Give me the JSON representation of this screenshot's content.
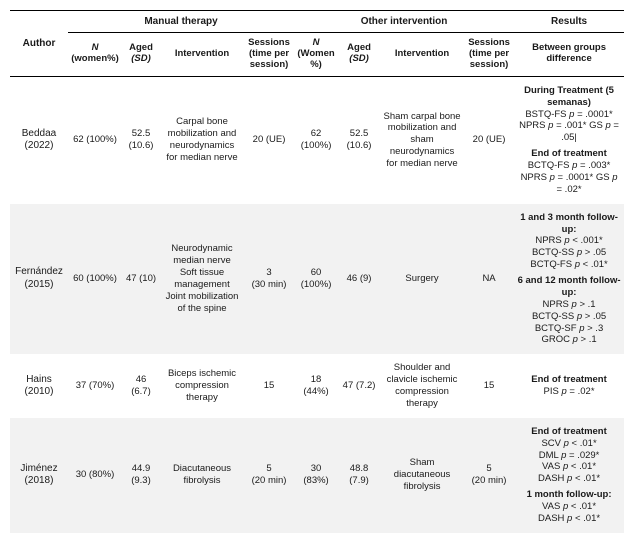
{
  "headers": {
    "group_author": "Author",
    "group_manual": "Manual therapy",
    "group_other": "Other intervention",
    "group_results": "Results",
    "n_women_html": "<span class='ital'>N</span><br>(women%)",
    "aged_html": "Aged<br><span class='ital'>(SD)</span>",
    "intervention": "Intervention",
    "sessions_html": "Sessions<br>(time per<br>session)",
    "n_women2_html": "<span class='ital'>N</span><br>(Women<br>%)",
    "results_sub": "Between groups<br>difference"
  },
  "rows": [
    {
      "shade": false,
      "author": "Beddaa (2022)",
      "mt_n": "62 (100%)",
      "mt_age": "52.5 (10.6)",
      "mt_int": "Carpal bone mobilization and neurodynamics for median nerve",
      "mt_sess": "20 (UE)",
      "ot_n": "62 (100%)",
      "ot_age": "52.5 (10.6)",
      "ot_int": "Sham carpal bone mobilization and sham neurodynamics for median nerve",
      "ot_sess": "20 (UE)",
      "results": [
        {
          "head": "During Treatment (5 semanas)",
          "lines": [
            "BSTQ-FS <span class='p-ital'>p</span> = .0001*",
            "NPRS <span class='p-ital'>p</span> = .001* GS <span class='p-ital'>p</span> = .05|"
          ]
        },
        {
          "head": "End of treatment",
          "lines": [
            "BCTQ-FS <span class='p-ital'>p</span> = .003*",
            "NPRS <span class='p-ital'>p</span> = .0001* GS <span class='p-ital'>p</span> = .02*"
          ]
        }
      ]
    },
    {
      "shade": true,
      "author": "Fernández (2015)",
      "mt_n": "60 (100%)",
      "mt_age": "47 (10)",
      "mt_int": "Neurodynamic median nerve<br>Soft tissue management<br>Joint mobilization of the spine",
      "mt_sess": "3<br>(30 min)",
      "ot_n": "60 (100%)",
      "ot_age": "46 (9)",
      "ot_int": "Surgery",
      "ot_sess": "NA",
      "results": [
        {
          "head": "1 and 3 month follow-up:",
          "lines": [
            "NPRS <span class='p-ital'>p</span> &lt; .001*",
            "BCTQ-SS <span class='p-ital'>p</span> &gt; .05",
            "BCTQ-FS <span class='p-ital'>p</span> &lt; .01*"
          ]
        },
        {
          "head": "6 and 12 month follow-up:",
          "lines": [
            "NPRS <span class='p-ital'>p</span> &gt; .1",
            "BCTQ-SS <span class='p-ital'>p</span> &gt; .05",
            "BCTQ-SF <span class='p-ital'>p</span> &gt; .3",
            "GROC <span class='p-ital'>p</span> &gt; .1"
          ]
        }
      ]
    },
    {
      "shade": false,
      "author": "Hains (2010)",
      "mt_n": "37 (70%)",
      "mt_age": "46 (6.7)",
      "mt_int": "Biceps ischemic compression therapy",
      "mt_sess": "15",
      "ot_n": "18 (44%)",
      "ot_age": "47 (7.2)",
      "ot_int": "Shoulder and clavicle ischemic compression therapy",
      "ot_sess": "15",
      "results": [
        {
          "head": "End of treatment",
          "lines": [
            "PIS <span class='p-ital'>p</span> = .02*"
          ]
        }
      ]
    },
    {
      "shade": true,
      "author": "Jiménez (2018)",
      "mt_n": "30 (80%)",
      "mt_age": "44.9 (9.3)",
      "mt_int": "Diacutaneous fibrolysis",
      "mt_sess": "5<br>(20 min)",
      "ot_n": "30 (83%)",
      "ot_age": "48.8 (7.9)",
      "ot_int": "Sham diacutaneous fibrolysis",
      "ot_sess": "5<br>(20 min)",
      "results": [
        {
          "head": "End of treatment",
          "lines": [
            "SCV <span class='p-ital'>p</span> &lt; .01*",
            "DML <span class='p-ital'>p</span> = .029*",
            "VAS <span class='p-ital'>p</span> &lt; .01*",
            "DASH <span class='p-ital'>p</span> &lt; .01*"
          ]
        },
        {
          "head": "1 month follow-up:",
          "lines": [
            "VAS <span class='p-ital'>p</span> &lt; .01*",
            "DASH <span class='p-ital'>p</span> &lt; .01*"
          ]
        }
      ]
    }
  ]
}
